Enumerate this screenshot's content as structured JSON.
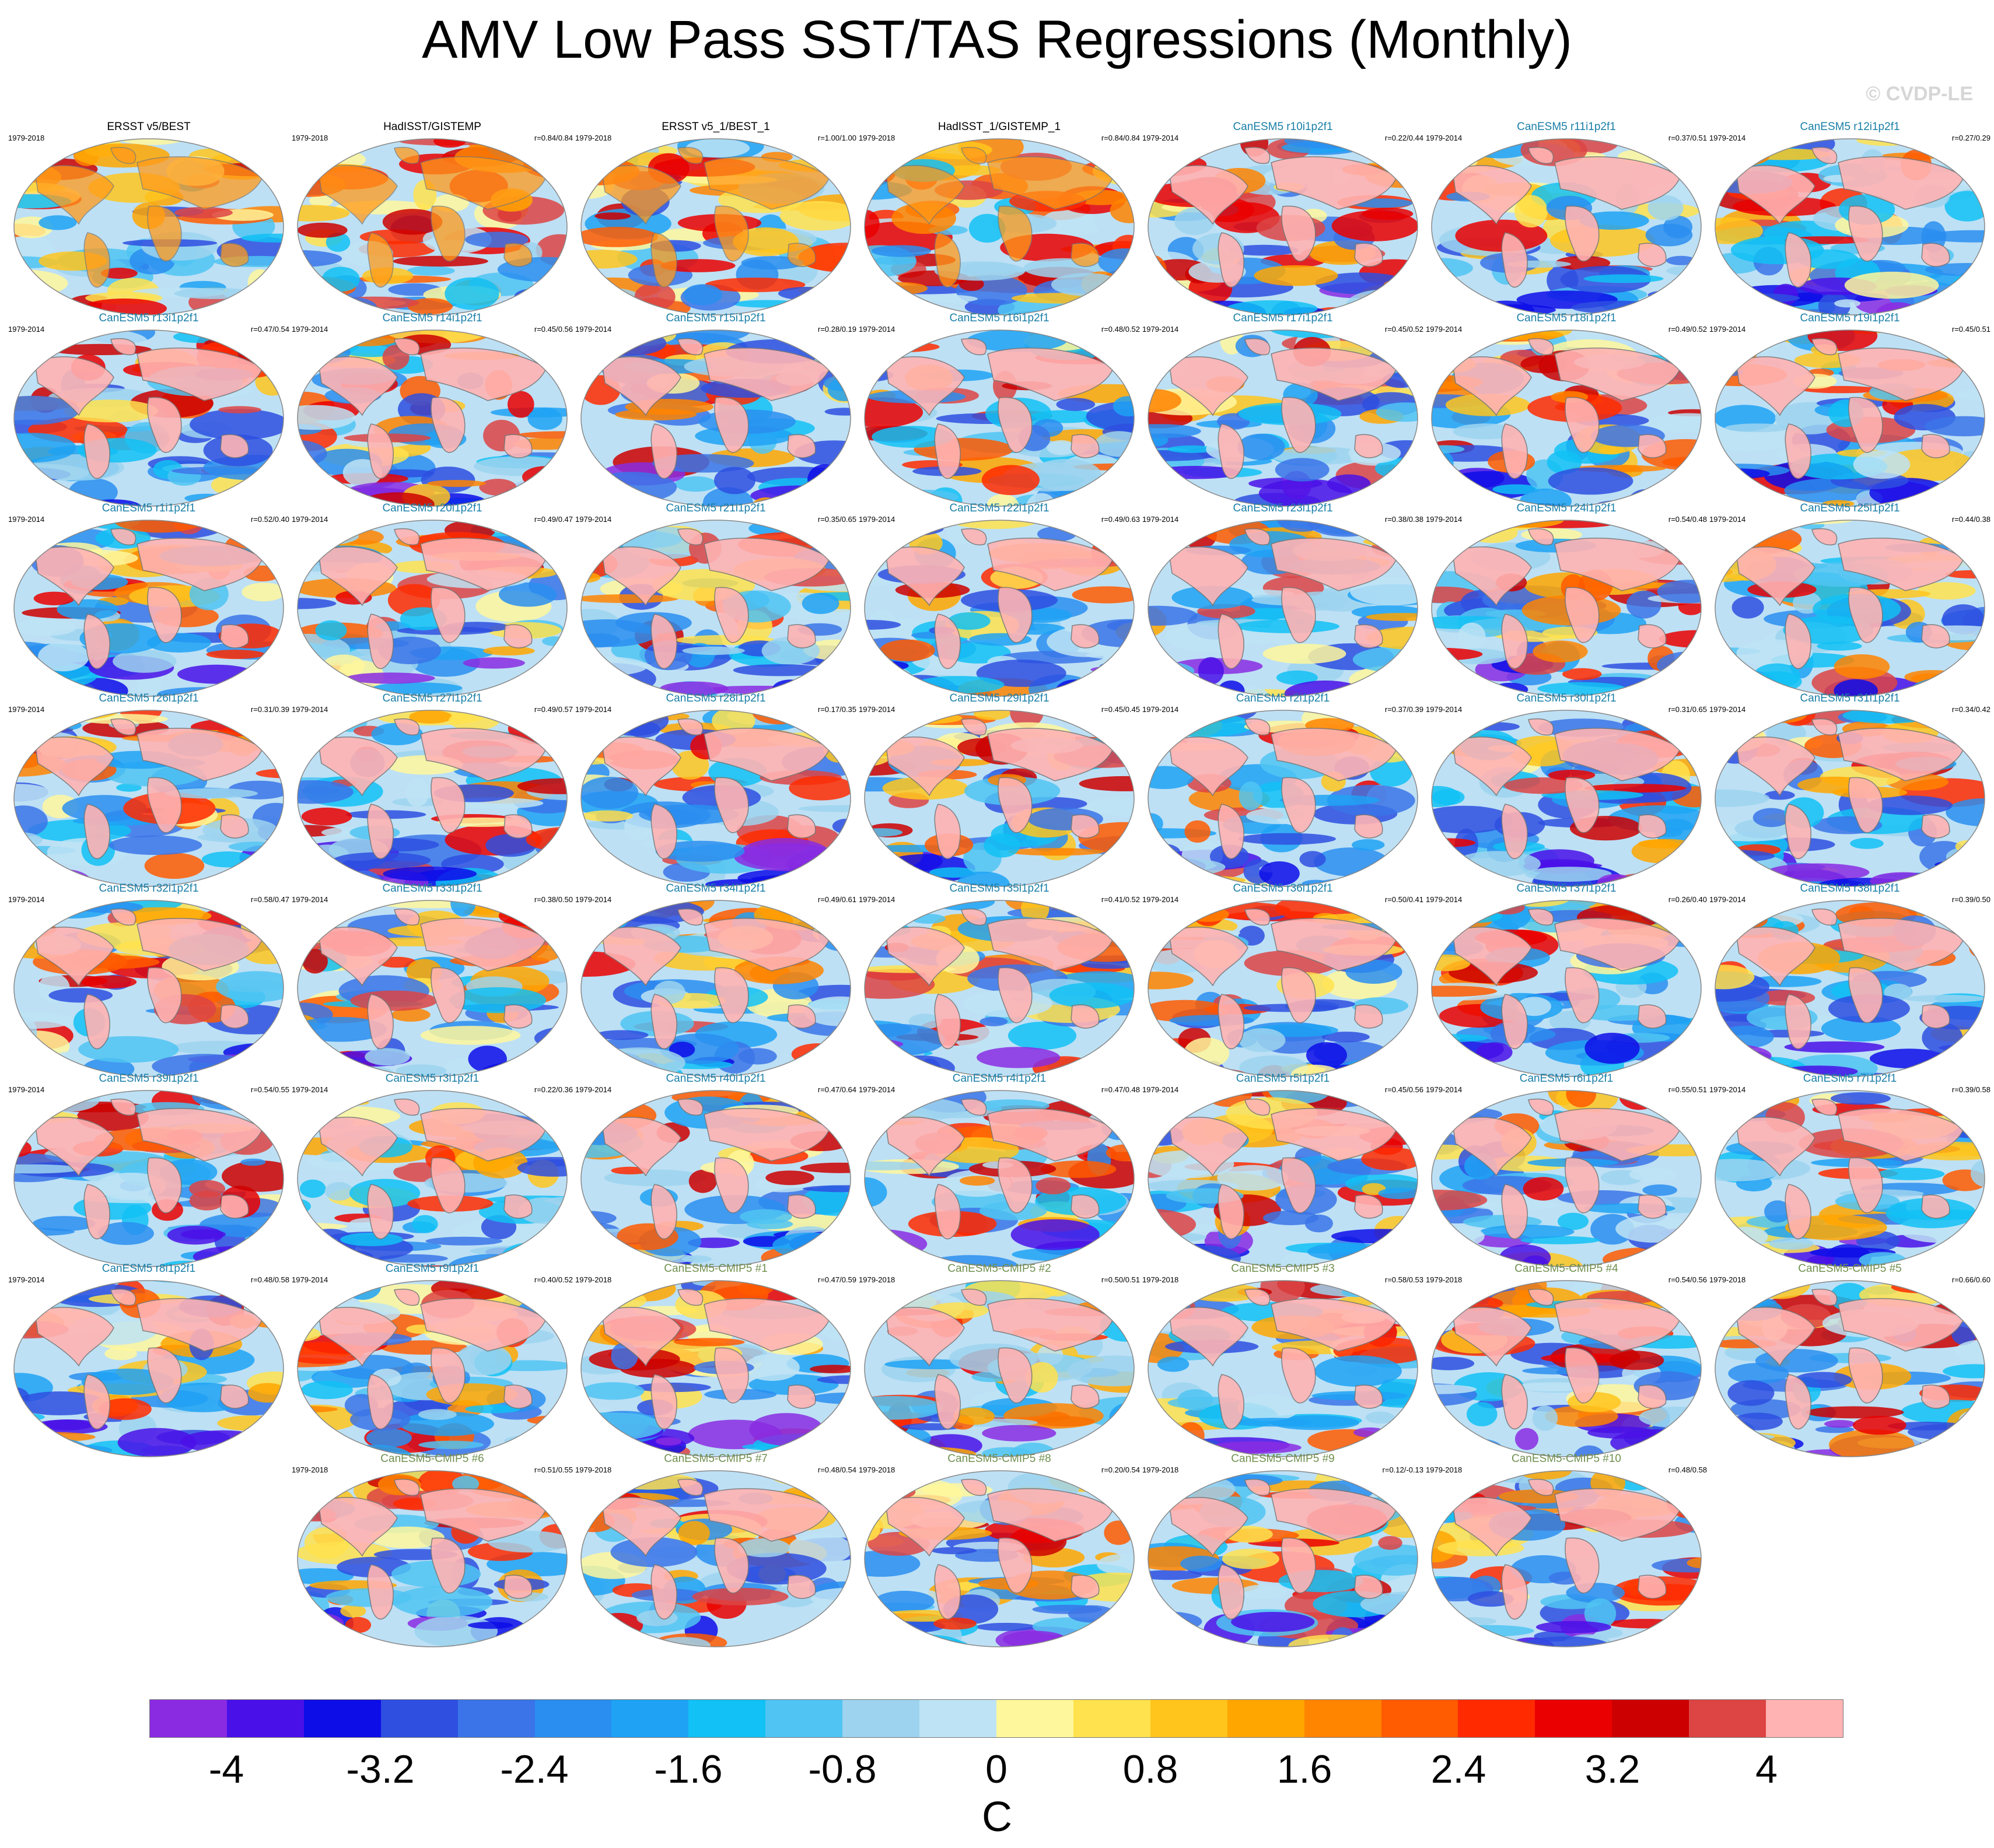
{
  "title": "AMV Low Pass SST/TAS Regressions (Monthly)",
  "copyright": "© CVDP-LE",
  "chart_data": {
    "type": "heatmap",
    "title": "AMV Low Pass SST/TAS Regressions (Monthly)",
    "description_units": "C",
    "colorbar": {
      "label": "C",
      "ticks": [
        "-4",
        "-3.2",
        "-2.4",
        "-1.6",
        "-0.8",
        "0",
        "0.8",
        "1.6",
        "2.4",
        "3.2",
        "4"
      ],
      "colors": [
        "#8a2be2",
        "#4a10e8",
        "#0d0de8",
        "#2e4fe0",
        "#3b74e8",
        "#2a8ef0",
        "#1fa2f4",
        "#12c1f5",
        "#50c4f2",
        "#9dd3ee",
        "#bee3f5",
        "#fff79c",
        "#ffe24d",
        "#ffc51d",
        "#ffa600",
        "#ff8400",
        "#ff5b00",
        "#ff2a00",
        "#ea0000",
        "#cc0000",
        "#dd4444",
        "#ffb3b3"
      ]
    },
    "panels": [
      {
        "title": "ERSST v5/BEST",
        "years": "1979-2018",
        "corr": "",
        "kind": "obs"
      },
      {
        "title": "HadISST/GISTEMP",
        "years": "1979-2018",
        "corr": "r=0.84/0.84",
        "kind": "obs"
      },
      {
        "title": "ERSST v5_1/BEST_1",
        "years": "1979-2018",
        "corr": "r=1.00/1.00",
        "kind": "obs"
      },
      {
        "title": "HadISST_1/GISTEMP_1",
        "years": "1979-2018",
        "corr": "r=0.84/0.84",
        "kind": "obs"
      },
      {
        "title": "CanESM5 r10i1p2f1",
        "years": "1979-2014",
        "corr": "r=0.22/0.44",
        "kind": "model"
      },
      {
        "title": "CanESM5 r11i1p2f1",
        "years": "1979-2014",
        "corr": "r=0.37/0.51",
        "kind": "model"
      },
      {
        "title": "CanESM5 r12i1p2f1",
        "years": "1979-2014",
        "corr": "r=0.27/0.29",
        "kind": "model"
      },
      {
        "title": "CanESM5 r13i1p2f1",
        "years": "1979-2014",
        "corr": "r=0.47/0.54",
        "kind": "model"
      },
      {
        "title": "CanESM5 r14i1p2f1",
        "years": "1979-2014",
        "corr": "r=0.45/0.56",
        "kind": "model"
      },
      {
        "title": "CanESM5 r15i1p2f1",
        "years": "1979-2014",
        "corr": "r=0.28/0.19",
        "kind": "model"
      },
      {
        "title": "CanESM5 r16i1p2f1",
        "years": "1979-2014",
        "corr": "r=0.48/0.52",
        "kind": "model"
      },
      {
        "title": "CanESM5 r17i1p2f1",
        "years": "1979-2014",
        "corr": "r=0.45/0.52",
        "kind": "model"
      },
      {
        "title": "CanESM5 r18i1p2f1",
        "years": "1979-2014",
        "corr": "r=0.49/0.52",
        "kind": "model"
      },
      {
        "title": "CanESM5 r19i1p2f1",
        "years": "1979-2014",
        "corr": "r=0.45/0.51",
        "kind": "model"
      },
      {
        "title": "CanESM5 r1i1p2f1",
        "years": "1979-2014",
        "corr": "r=0.52/0.40",
        "kind": "model"
      },
      {
        "title": "CanESM5 r20i1p2f1",
        "years": "1979-2014",
        "corr": "r=0.49/0.47",
        "kind": "model"
      },
      {
        "title": "CanESM5 r21i1p2f1",
        "years": "1979-2014",
        "corr": "r=0.35/0.65",
        "kind": "model"
      },
      {
        "title": "CanESM5 r22i1p2f1",
        "years": "1979-2014",
        "corr": "r=0.49/0.63",
        "kind": "model"
      },
      {
        "title": "CanESM5 r23i1p2f1",
        "years": "1979-2014",
        "corr": "r=0.38/0.38",
        "kind": "model"
      },
      {
        "title": "CanESM5 r24i1p2f1",
        "years": "1979-2014",
        "corr": "r=0.54/0.48",
        "kind": "model"
      },
      {
        "title": "CanESM5 r25i1p2f1",
        "years": "1979-2014",
        "corr": "r=0.44/0.38",
        "kind": "model"
      },
      {
        "title": "CanESM5 r26i1p2f1",
        "years": "1979-2014",
        "corr": "r=0.31/0.39",
        "kind": "model"
      },
      {
        "title": "CanESM5 r27i1p2f1",
        "years": "1979-2014",
        "corr": "r=0.49/0.57",
        "kind": "model"
      },
      {
        "title": "CanESM5 r28i1p2f1",
        "years": "1979-2014",
        "corr": "r=0.17/0.35",
        "kind": "model"
      },
      {
        "title": "CanESM5 r29i1p2f1",
        "years": "1979-2014",
        "corr": "r=0.45/0.45",
        "kind": "model"
      },
      {
        "title": "CanESM5 r2i1p2f1",
        "years": "1979-2014",
        "corr": "r=0.37/0.39",
        "kind": "model"
      },
      {
        "title": "CanESM5 r30i1p2f1",
        "years": "1979-2014",
        "corr": "r=0.31/0.65",
        "kind": "model"
      },
      {
        "title": "CanESM5 r31i1p2f1",
        "years": "1979-2014",
        "corr": "r=0.34/0.42",
        "kind": "model"
      },
      {
        "title": "CanESM5 r32i1p2f1",
        "years": "1979-2014",
        "corr": "r=0.58/0.47",
        "kind": "model"
      },
      {
        "title": "CanESM5 r33i1p2f1",
        "years": "1979-2014",
        "corr": "r=0.38/0.50",
        "kind": "model"
      },
      {
        "title": "CanESM5 r34i1p2f1",
        "years": "1979-2014",
        "corr": "r=0.49/0.61",
        "kind": "model"
      },
      {
        "title": "CanESM5 r35i1p2f1",
        "years": "1979-2014",
        "corr": "r=0.41/0.52",
        "kind": "model"
      },
      {
        "title": "CanESM5 r36i1p2f1",
        "years": "1979-2014",
        "corr": "r=0.50/0.41",
        "kind": "model"
      },
      {
        "title": "CanESM5 r37i1p2f1",
        "years": "1979-2014",
        "corr": "r=0.26/0.40",
        "kind": "model"
      },
      {
        "title": "CanESM5 r38i1p2f1",
        "years": "1979-2014",
        "corr": "r=0.39/0.50",
        "kind": "model"
      },
      {
        "title": "CanESM5 r39i1p2f1",
        "years": "1979-2014",
        "corr": "r=0.54/0.55",
        "kind": "model"
      },
      {
        "title": "CanESM5 r3i1p2f1",
        "years": "1979-2014",
        "corr": "r=0.22/0.36",
        "kind": "model"
      },
      {
        "title": "CanESM5 r40i1p2f1",
        "years": "1979-2014",
        "corr": "r=0.47/0.64",
        "kind": "model"
      },
      {
        "title": "CanESM5 r4i1p2f1",
        "years": "1979-2014",
        "corr": "r=0.47/0.48",
        "kind": "model"
      },
      {
        "title": "CanESM5 r5i1p2f1",
        "years": "1979-2014",
        "corr": "r=0.45/0.56",
        "kind": "model"
      },
      {
        "title": "CanESM5 r6i1p2f1",
        "years": "1979-2014",
        "corr": "r=0.55/0.51",
        "kind": "model"
      },
      {
        "title": "CanESM5 r7i1p2f1",
        "years": "1979-2014",
        "corr": "r=0.39/0.58",
        "kind": "model"
      },
      {
        "title": "CanESM5 r8i1p2f1",
        "years": "1979-2014",
        "corr": "r=0.48/0.58",
        "kind": "model"
      },
      {
        "title": "CanESM5 r9i1p2f1",
        "years": "1979-2014",
        "corr": "r=0.40/0.52",
        "kind": "model"
      },
      {
        "title": "CanESM5-CMIP5 #1",
        "years": "1979-2018",
        "corr": "r=0.47/0.59",
        "kind": "cmip5"
      },
      {
        "title": "CanESM5-CMIP5 #2",
        "years": "1979-2018",
        "corr": "r=0.50/0.51",
        "kind": "cmip5"
      },
      {
        "title": "CanESM5-CMIP5 #3",
        "years": "1979-2018",
        "corr": "r=0.58/0.53",
        "kind": "cmip5"
      },
      {
        "title": "CanESM5-CMIP5 #4",
        "years": "1979-2018",
        "corr": "r=0.54/0.56",
        "kind": "cmip5"
      },
      {
        "title": "CanESM5-CMIP5 #5",
        "years": "1979-2018",
        "corr": "r=0.66/0.60",
        "kind": "cmip5"
      },
      {
        "title": "CanESM5-CMIP5 #6",
        "years": "1979-2018",
        "corr": "r=0.51/0.55",
        "kind": "cmip5"
      },
      {
        "title": "CanESM5-CMIP5 #7",
        "years": "1979-2018",
        "corr": "r=0.48/0.54",
        "kind": "cmip5"
      },
      {
        "title": "CanESM5-CMIP5 #8",
        "years": "1979-2018",
        "corr": "r=0.20/0.54",
        "kind": "cmip5"
      },
      {
        "title": "CanESM5-CMIP5 #9",
        "years": "1979-2018",
        "corr": "r=0.12/-0.13",
        "kind": "cmip5"
      },
      {
        "title": "CanESM5-CMIP5 #10",
        "years": "1979-2018",
        "corr": "r=0.48/0.58",
        "kind": "cmip5"
      }
    ]
  },
  "styles": {
    "title_colors": {
      "obs": "#000000",
      "model": "#1a7fa8",
      "cmip5": "#6f8f4f"
    },
    "ocean_base": "#bde0f5",
    "land_base": "#ffb3b3",
    "coast": "#777777"
  }
}
